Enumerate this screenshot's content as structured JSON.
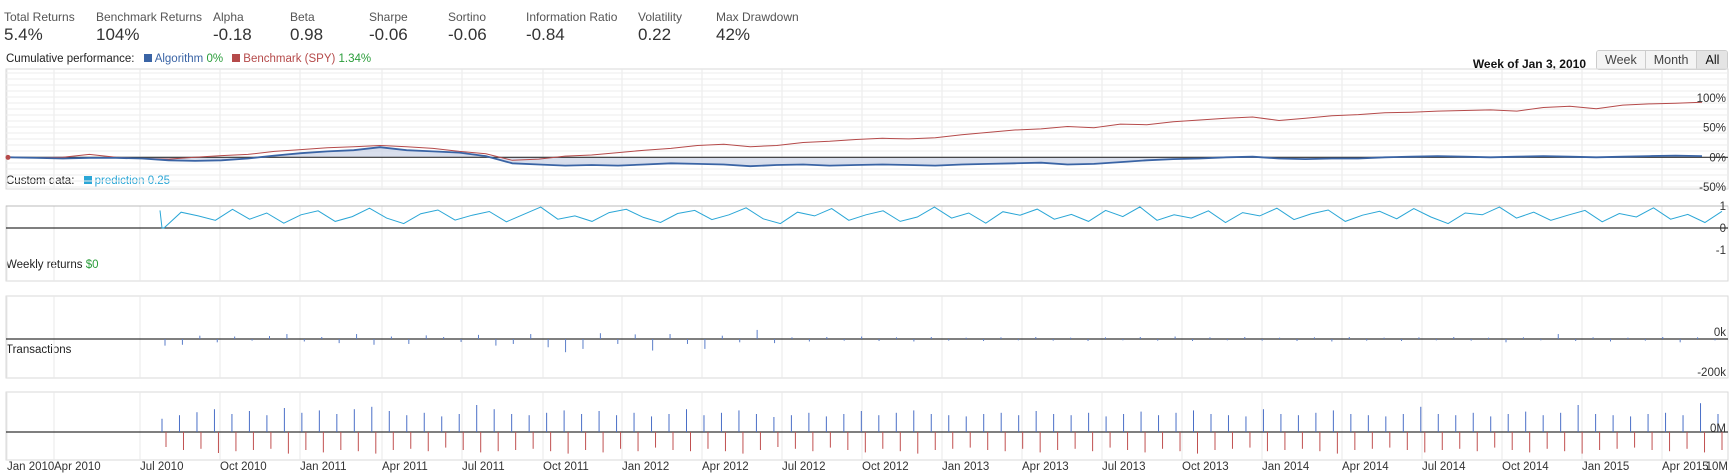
{
  "metrics": [
    {
      "label": "Total Returns",
      "value": "5.4%"
    },
    {
      "label": "Benchmark Returns",
      "value": "104%"
    },
    {
      "label": "Alpha",
      "value": "-0.18"
    },
    {
      "label": "Beta",
      "value": "0.98"
    },
    {
      "label": "Sharpe",
      "value": "-0.06"
    },
    {
      "label": "Sortino",
      "value": "-0.06"
    },
    {
      "label": "Information Ratio",
      "value": "-0.84"
    },
    {
      "label": "Volatility",
      "value": "0.22"
    },
    {
      "label": "Max Drawdown",
      "value": "42%"
    }
  ],
  "colors": {
    "algorithm": "#3a64a5",
    "benchmark": "#b54a4a",
    "prediction": "#2aa6d6",
    "returns_bar": "#5b7ec9",
    "buy_bar": "#4a6fc7",
    "sell_bar": "#c05050",
    "positive_text": "#2a9d3a"
  },
  "range": {
    "label": "Week of Jan 3, 2010",
    "buttons": [
      "Week",
      "Month",
      "All"
    ],
    "active": "All"
  },
  "panels": {
    "cumulative": {
      "title": "Cumulative performance:",
      "algorithm_label": "Algorithm",
      "algorithm_value": "0%",
      "benchmark_label": "Benchmark (SPY)",
      "benchmark_value": "1.34%"
    },
    "custom": {
      "title": "Custom data:",
      "prediction_label": "prediction",
      "prediction_value": "0.25"
    },
    "weekly": {
      "title": "Weekly returns",
      "value": "$0"
    },
    "transactions": {
      "title": "Transactions"
    }
  },
  "chart_data": [
    {
      "type": "line",
      "title": "Cumulative performance",
      "x": [
        "2010-01",
        "2010-02",
        "2010-03",
        "2010-04",
        "2010-05",
        "2010-06",
        "2010-07",
        "2010-08",
        "2010-09",
        "2010-10",
        "2010-11",
        "2010-12",
        "2011-01",
        "2011-02",
        "2011-03",
        "2011-04",
        "2011-05",
        "2011-06",
        "2011-07",
        "2011-08",
        "2011-09",
        "2011-10",
        "2011-11",
        "2011-12",
        "2012-01",
        "2012-02",
        "2012-03",
        "2012-04",
        "2012-05",
        "2012-06",
        "2012-07",
        "2012-08",
        "2012-09",
        "2012-10",
        "2012-11",
        "2012-12",
        "2013-01",
        "2013-02",
        "2013-03",
        "2013-04",
        "2013-05",
        "2013-06",
        "2013-07",
        "2013-08",
        "2013-09",
        "2013-10",
        "2013-11",
        "2013-12",
        "2014-01",
        "2014-02",
        "2014-03",
        "2014-04",
        "2014-05",
        "2014-06",
        "2014-07",
        "2014-08",
        "2014-09",
        "2014-10",
        "2014-11",
        "2014-12",
        "2015-01",
        "2015-02",
        "2015-03",
        "2015-04",
        "2015-05"
      ],
      "series": [
        {
          "name": "Algorithm",
          "values": [
            0,
            -1,
            -2,
            -1,
            -1,
            -2,
            -5,
            -6,
            -5,
            -2,
            3,
            7,
            10,
            12,
            17,
            12,
            10,
            8,
            2,
            -10,
            -12,
            -14,
            -13,
            -14,
            -12,
            -10,
            -11,
            -12,
            -15,
            -13,
            -12,
            -14,
            -13,
            -12,
            -13,
            -14,
            -12,
            -11,
            -10,
            -9,
            -12,
            -11,
            -8,
            -5,
            -3,
            -2,
            0,
            1,
            -2,
            -3,
            -2,
            -2,
            0,
            1,
            2,
            1,
            0,
            1,
            2,
            1,
            0,
            1,
            2,
            3,
            2
          ]
        },
        {
          "name": "Benchmark (SPY)",
          "values": [
            0,
            -1,
            0,
            5,
            0,
            -2,
            -3,
            0,
            3,
            5,
            10,
            13,
            16,
            18,
            20,
            18,
            15,
            10,
            6,
            -5,
            -3,
            2,
            4,
            8,
            12,
            15,
            20,
            22,
            18,
            20,
            25,
            27,
            30,
            32,
            31,
            33,
            38,
            42,
            46,
            48,
            52,
            50,
            56,
            55,
            60,
            63,
            66,
            68,
            62,
            66,
            70,
            72,
            75,
            76,
            78,
            79,
            80,
            78,
            84,
            86,
            82,
            88,
            90,
            91,
            93
          ]
        }
      ],
      "ylim": [
        -50,
        100
      ],
      "yticks": [
        "100%",
        "50%",
        "0%",
        "-50%"
      ],
      "grid": true
    },
    {
      "type": "line",
      "title": "Custom data",
      "series": [
        {
          "name": "prediction",
          "values": [
            0,
            0.72,
            0.55,
            0.35,
            0.85,
            0.4,
            0.68,
            0.22,
            0.6,
            0.78,
            0.3,
            0.52,
            0.9,
            0.45,
            0.2,
            0.65,
            0.82,
            0.36,
            0.58,
            0.75,
            0.28,
            0.62,
            0.95,
            0.4,
            0.55,
            0.3,
            0.7,
            0.85,
            0.48,
            0.25,
            0.66,
            0.8,
            0.38,
            0.6,
            0.92,
            0.42,
            0.2,
            0.72,
            0.55,
            0.88,
            0.35,
            0.6,
            0.78,
            0.3,
            0.5,
            0.95,
            0.45,
            0.68,
            0.22,
            0.74,
            0.58,
            0.86,
            0.4,
            0.62,
            0.3,
            0.8,
            0.52,
            0.96,
            0.35,
            0.6,
            0.45,
            0.78,
            0.25,
            0.7,
            0.55,
            0.9,
            0.38,
            0.64,
            0.82,
            0.3,
            0.58,
            0.76,
            0.42,
            0.88,
            0.5,
            0.2,
            0.68,
            0.6,
            0.95,
            0.45,
            0.72,
            0.35,
            0.58,
            0.8,
            0.28,
            0.66,
            0.5,
            0.92,
            0.4,
            0.62,
            0.25,
            0.76
          ]
        }
      ],
      "ylim": [
        -1,
        1
      ],
      "yticks": [
        "1",
        "0",
        "-1"
      ]
    },
    {
      "type": "bar",
      "title": "Weekly returns",
      "values": [
        -40000,
        -35000,
        20000,
        -20000,
        15000,
        -10000,
        18000,
        30000,
        -15000,
        12000,
        -25000,
        30000,
        -35000,
        15000,
        -30000,
        22000,
        12000,
        -18000,
        25000,
        -40000,
        -30000,
        30000,
        -50000,
        -80000,
        -60000,
        35000,
        -30000,
        28000,
        -70000,
        30000,
        -30000,
        -60000,
        20000,
        -20000,
        55000,
        -25000,
        10000,
        -15000,
        12000,
        -10000,
        15000,
        -12000,
        10000,
        -15000,
        12000,
        -10000,
        8000,
        -12000,
        10000,
        -8000,
        12000,
        -10000,
        8000,
        -12000,
        10000,
        -8000,
        12000,
        -10000,
        15000,
        -12000,
        10000,
        -8000,
        12000,
        -10000,
        8000,
        -12000,
        10000,
        -15000,
        12000,
        -10000,
        8000,
        -12000,
        10000,
        -8000,
        12000,
        -10000,
        8000,
        -20000,
        10000,
        -8000,
        30000,
        -12000,
        10000,
        -15000,
        8000,
        -10000,
        12000,
        -20000,
        10000,
        -8000
      ],
      "ylim": [
        -200000,
        100000
      ],
      "yticks": [
        "0k",
        "-200k"
      ]
    },
    {
      "type": "bar",
      "title": "Transactions",
      "series": [
        {
          "values": [
            22,
            28,
            33,
            38,
            30,
            35,
            28,
            40,
            32,
            36,
            30,
            38,
            42,
            35,
            28,
            32,
            26,
            30,
            45,
            38,
            30,
            28,
            32,
            36,
            30,
            35,
            28,
            32,
            26,
            30,
            38,
            28,
            32,
            36,
            30,
            25,
            28,
            32,
            26,
            30,
            35,
            28,
            32,
            36,
            30,
            28,
            26,
            30,
            32,
            28,
            35,
            30,
            28,
            32,
            26,
            30,
            34,
            28,
            32,
            36,
            30,
            28,
            26,
            38,
            30,
            28,
            32,
            36,
            30,
            28,
            26,
            30,
            42,
            30,
            28,
            32,
            26,
            30,
            34,
            28,
            32,
            45,
            30,
            28,
            26,
            30,
            32,
            28,
            48,
            30
          ]
        },
        {
          "values": [
            -25,
            -30,
            -28,
            -35,
            -32,
            -30,
            -28,
            -36,
            -30,
            -34,
            -30,
            -32,
            -36,
            -30,
            -28,
            -32,
            -26,
            -30,
            -34,
            -32,
            -30,
            -28,
            -32,
            -36,
            -30,
            -34,
            -28,
            -32,
            -26,
            -30,
            -32,
            -28,
            -32,
            -36,
            -30,
            -25,
            -28,
            -32,
            -26,
            -30,
            -34,
            -28,
            -32,
            -36,
            -30,
            -28,
            -26,
            -30,
            -32,
            -28,
            -34,
            -30,
            -28,
            -32,
            -26,
            -30,
            -34,
            -28,
            -32,
            -36,
            -30,
            -28,
            -26,
            -32,
            -30,
            -28,
            -32,
            -36,
            -30,
            -28,
            -26,
            -30,
            -34,
            -30,
            -28,
            -32,
            -26,
            -30,
            -34,
            -28,
            -32,
            -36,
            -30,
            -28,
            -26,
            -30,
            -32,
            -28,
            -34,
            -30
          ]
        }
      ],
      "yticks": [
        "0M",
        "10M"
      ]
    }
  ],
  "x_axis_ticks": [
    "Jan 2010",
    "Apr 2010",
    "Jul 2010",
    "Oct 2010",
    "Jan 2011",
    "Apr 2011",
    "Jul 2011",
    "Oct 2011",
    "Jan 2012",
    "Apr 2012",
    "Jul 2012",
    "Oct 2012",
    "Jan 2013",
    "Apr 2013",
    "Jul 2013",
    "Oct 2013",
    "Jan 2014",
    "Apr 2014",
    "Jul 2014",
    "Oct 2014",
    "Jan 2015",
    "Apr 2015"
  ]
}
